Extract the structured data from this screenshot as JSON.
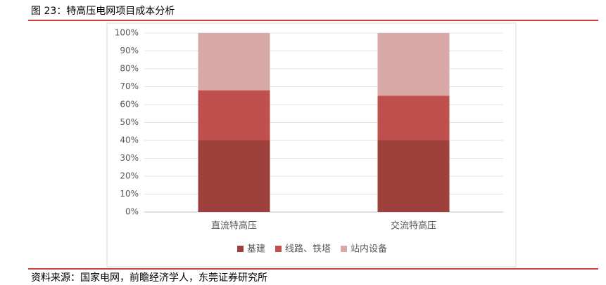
{
  "chart_data": {
    "type": "stacked_bar",
    "title": "图 23：特高压电网项目成本分析",
    "source": "资料来源：国家电网，前瞻经济学人，东莞证券研究所",
    "categories": [
      "直流特高压",
      "交流特高压"
    ],
    "series": [
      {
        "name": "基建",
        "color": "#9e413d",
        "values": [
          40,
          40
        ]
      },
      {
        "name": "线路、铁塔",
        "color": "#c0504d",
        "values": [
          28,
          25
        ]
      },
      {
        "name": "站内设备",
        "color": "#d9a9a8",
        "values": [
          32,
          35
        ]
      }
    ],
    "ylim": [
      0,
      100
    ],
    "yticks": [
      {
        "value": 0,
        "label": "0%"
      },
      {
        "value": 10,
        "label": "10%"
      },
      {
        "value": 20,
        "label": "20%"
      },
      {
        "value": 30,
        "label": "30%"
      },
      {
        "value": 40,
        "label": "40%"
      },
      {
        "value": 50,
        "label": "50%"
      },
      {
        "value": 60,
        "label": "60%"
      },
      {
        "value": 70,
        "label": "70%"
      },
      {
        "value": 80,
        "label": "80%"
      },
      {
        "value": 90,
        "label": "90%"
      },
      {
        "value": 100,
        "label": "100%"
      }
    ],
    "grid": true
  }
}
